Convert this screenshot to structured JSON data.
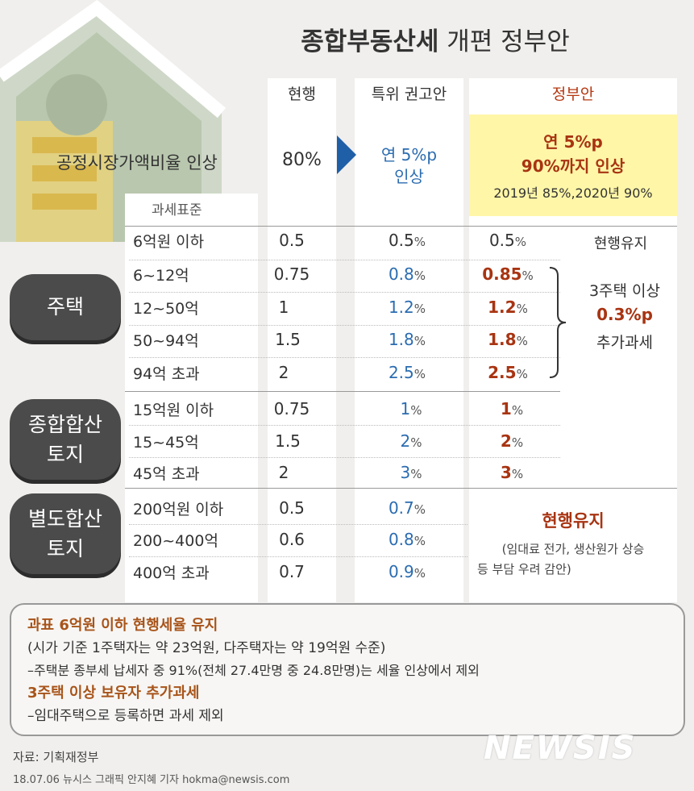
{
  "title": {
    "bold": "종합부동산세",
    "rest": " 개편 정부안"
  },
  "columns": {
    "current": "현행",
    "committee": "특위 권고안",
    "government": "정부안"
  },
  "fair_market": {
    "label": "공정시장가액비율 인상",
    "current": "80%",
    "committee_line1": "연 5%p",
    "committee_line2": "인상",
    "gov_line1": "연 5%p",
    "gov_line2": "90%까지 인상",
    "gov_line3": "2019년 85%,2020년 90%"
  },
  "tax_base_label": "과세표준",
  "pct": "%",
  "housing": {
    "label": "주택",
    "rows": [
      {
        "base": "6억원 이하",
        "current": "0.5",
        "committee": "0.5",
        "gov": "0.5"
      },
      {
        "base": "6~12억",
        "current": "0.75",
        "committee": "0.8",
        "gov": "0.85"
      },
      {
        "base": "12~50억",
        "current": "1",
        "committee": "1.2",
        "gov": "1.2"
      },
      {
        "base": "50~94억",
        "current": "1.5",
        "committee": "1.8",
        "gov": "1.8"
      },
      {
        "base": "94억 초과",
        "current": "2",
        "committee": "2.5",
        "gov": "2.5"
      }
    ],
    "note_keep": "현행유지",
    "note_multi_1": "3주택 이상",
    "note_multi_2": "0.3%p",
    "note_multi_3": "추가과세"
  },
  "combined_land": {
    "label_1": "종합합산",
    "label_2": "토지",
    "rows": [
      {
        "base": "15억원 이하",
        "current": "0.75",
        "committee": "1",
        "gov": "1"
      },
      {
        "base": "15~45억",
        "current": "1.5",
        "committee": "2",
        "gov": "2"
      },
      {
        "base": "45억 초과",
        "current": "2",
        "committee": "3",
        "gov": "3"
      }
    ]
  },
  "separate_land": {
    "label_1": "별도합산",
    "label_2": "토지",
    "rows": [
      {
        "base": "200억원 이하",
        "current": "0.5",
        "committee": "0.7"
      },
      {
        "base": "200~400억",
        "current": "0.6",
        "committee": "0.8"
      },
      {
        "base": "400억 초과",
        "current": "0.7",
        "committee": "0.9"
      }
    ],
    "gov_keep": "현행유지",
    "gov_reason_1": "(임대료 전가, 생산원가 상승",
    "gov_reason_2": "등 부담 우려 감안)"
  },
  "notes": {
    "line1": "과표 6억원 이하 현행세율 유지",
    "line2": "(시가 기준 1주택자는 약 23억원, 다주택자는 약 19억원 수준)",
    "line3": "–주택분 종부세 납세자 중 91%(전체 27.4만명 중 24.8만명)는 세율 인상에서 제외",
    "line4": "3주택 이상 보유자 추가과세",
    "line5": "–임대주택으로 등록하면 과세 제외"
  },
  "source": "자료: 기획재정부",
  "credit": "18.07.06 뉴시스 그래픽 안지혜 기자 hokma@newsis.com",
  "logo": "NEWSIS",
  "colors": {
    "blue": "#2b6cb0",
    "red": "#a83412",
    "highlight": "#fff6a8",
    "pill": "#4b4b4b"
  }
}
